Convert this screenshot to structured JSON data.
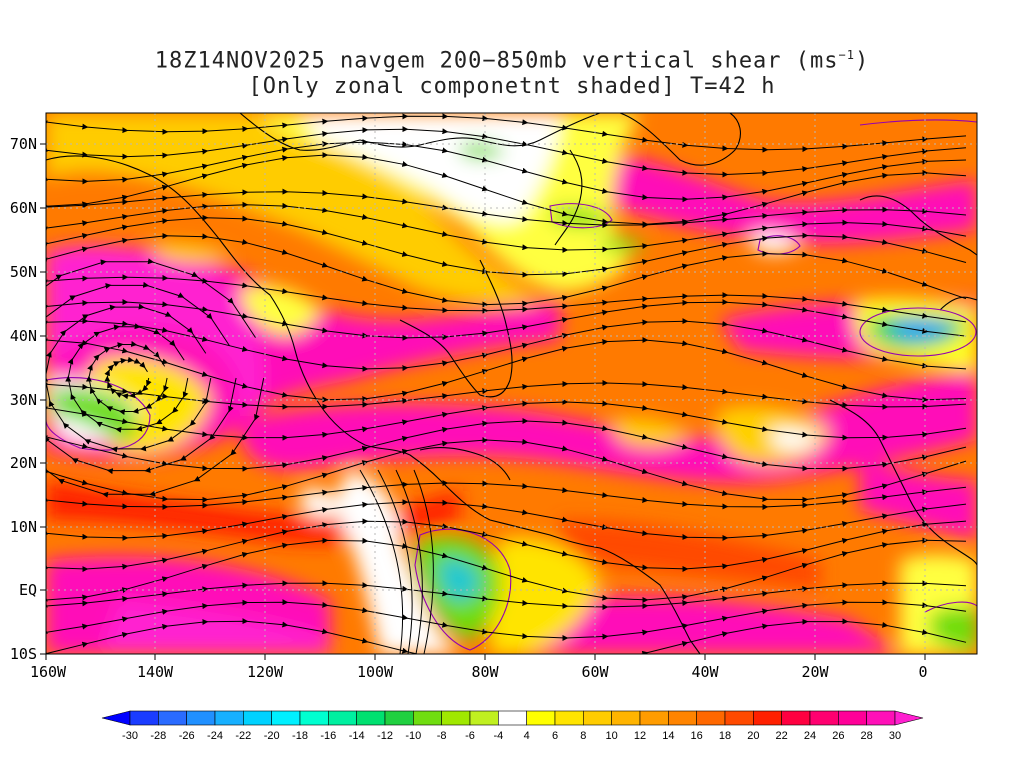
{
  "title": {
    "line1_prefix": "18Z14NOV2025 navgem 200−850mb vertical shear (ms",
    "line1_sup": "−1",
    "line1_suffix": ")",
    "line2": "[Only zonal componetnt shaded] T=42 h"
  },
  "axes": {
    "lat_labels": [
      "70N",
      "60N",
      "50N",
      "40N",
      "30N",
      "20N",
      "10N",
      "EQ",
      "10S"
    ],
    "lon_labels": [
      "160W",
      "140W",
      "120W",
      "100W",
      "80W",
      "60W",
      "40W",
      "20W",
      "0"
    ]
  },
  "colorbar": {
    "labels": [
      "-30",
      "-28",
      "-26",
      "-24",
      "-22",
      "-20",
      "-18",
      "-16",
      "-14",
      "-12",
      "-10",
      "-8",
      "-6",
      "-4",
      "4",
      "6",
      "8",
      "10",
      "12",
      "14",
      "16",
      "18",
      "20",
      "22",
      "24",
      "26",
      "28",
      "30"
    ],
    "colors": [
      "#0000ff",
      "#1a3cff",
      "#2a6bff",
      "#2090ff",
      "#17b0ff",
      "#00d2ff",
      "#00f0ff",
      "#00ffd0",
      "#00f0a0",
      "#00e070",
      "#20d040",
      "#70dd10",
      "#a0e800",
      "#c0f020",
      "#ffffff",
      "#ffff00",
      "#ffe400",
      "#ffcc00",
      "#ffb400",
      "#ff9c00",
      "#ff8400",
      "#ff6800",
      "#ff4a00",
      "#ff2000",
      "#ff0040",
      "#ff0070",
      "#ff0098",
      "#ff10b8",
      "#ff20d0"
    ]
  },
  "map": {
    "projection": "cylindrical equidistant",
    "lon_range": [
      -160,
      10
    ],
    "lat_range": [
      -10,
      75
    ],
    "field": "200-850mb vertical shear, zonal component shaded",
    "contour_color": "#9400b0"
  }
}
